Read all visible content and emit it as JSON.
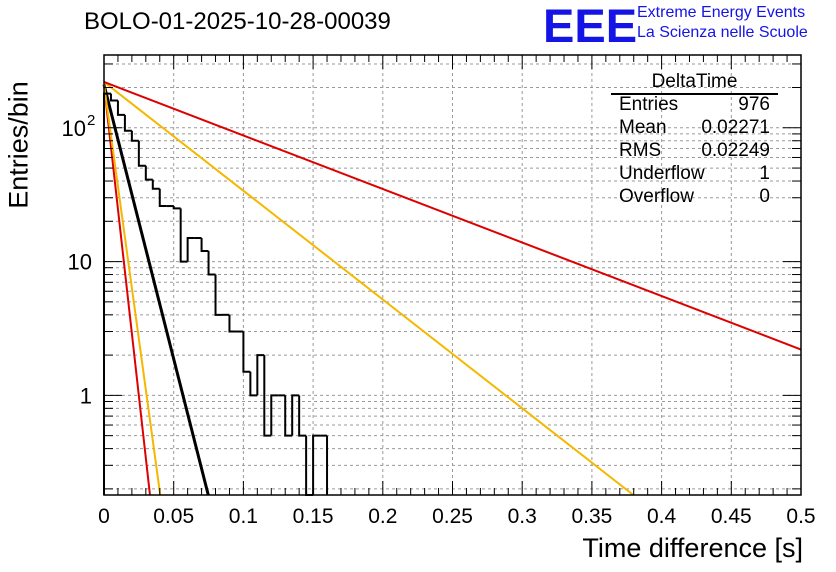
{
  "chart_title": "BOLO-01-2025-10-28-00039",
  "logo": {
    "mark": "EEE",
    "line1": "Extreme Energy Events",
    "line2": "La Scienza nelle Scuole"
  },
  "stats": {
    "title": "DeltaTime",
    "rows": [
      {
        "key": "Entries",
        "value": "976"
      },
      {
        "key": "Mean",
        "value": "0.02271"
      },
      {
        "key": "RMS",
        "value": "0.02249"
      },
      {
        "key": "Underflow",
        "value": "1"
      },
      {
        "key": "Overflow",
        "value": "0"
      }
    ]
  },
  "chart_data": {
    "type": "histogram",
    "title": "BOLO-01-2025-10-28-00039",
    "xlabel": "Time difference [s]",
    "ylabel": "Entries/bin",
    "xlim": [
      0,
      0.5
    ],
    "ylim": [
      0.18,
      350
    ],
    "yscale": "log",
    "grid": true,
    "x_ticks": [
      "0",
      "0.05",
      "0.1",
      "0.15",
      "0.2",
      "0.25",
      "0.3",
      "0.35",
      "0.4",
      "0.45",
      "0.5"
    ],
    "x_tick_values": [
      0,
      0.05,
      0.1,
      0.15,
      0.2,
      0.25,
      0.3,
      0.35,
      0.4,
      0.45,
      0.5
    ],
    "y_ticks": [
      {
        "value": 1,
        "base": "1",
        "exp": ""
      },
      {
        "value": 10,
        "base": "10",
        "exp": ""
      },
      {
        "value": 100,
        "base": "10",
        "exp": "2"
      }
    ],
    "bin_width": 0.005,
    "bin_start": 0,
    "histogram": {
      "name": "DeltaTime",
      "color": "#000000",
      "counts": [
        180,
        160,
        125,
        95,
        80,
        52,
        41,
        35,
        26,
        26,
        25,
        10,
        15,
        15,
        12,
        8,
        4,
        4,
        3,
        3,
        1.5,
        1,
        2,
        0.5,
        1,
        1,
        0.5,
        1,
        0.5,
        0,
        0.5,
        0.5
      ]
    },
    "fits": [
      {
        "name": "fit",
        "color": "#000000",
        "y0": 210,
        "x_end": 0.165,
        "slope_per_unit_x": -41,
        "width": 3
      },
      {
        "name": "red-steep",
        "color": "#dd0000",
        "y0": 210,
        "x_end": 0.5,
        "slope_per_unit_x": -93,
        "width": 2
      },
      {
        "name": "orange-steep",
        "color": "#f5b800",
        "y0": 210,
        "x_end": 0.5,
        "slope_per_unit_x": -76,
        "width": 2
      },
      {
        "name": "orange-slow",
        "color": "#f5b800",
        "y0": 220,
        "x_end": 0.5,
        "slope_per_unit_x": -8.13,
        "width": 2
      },
      {
        "name": "red-slow",
        "color": "#dd0000",
        "y0": 220,
        "x_end": 0.5,
        "slope_per_unit_x": -4.0,
        "width": 2
      }
    ]
  }
}
